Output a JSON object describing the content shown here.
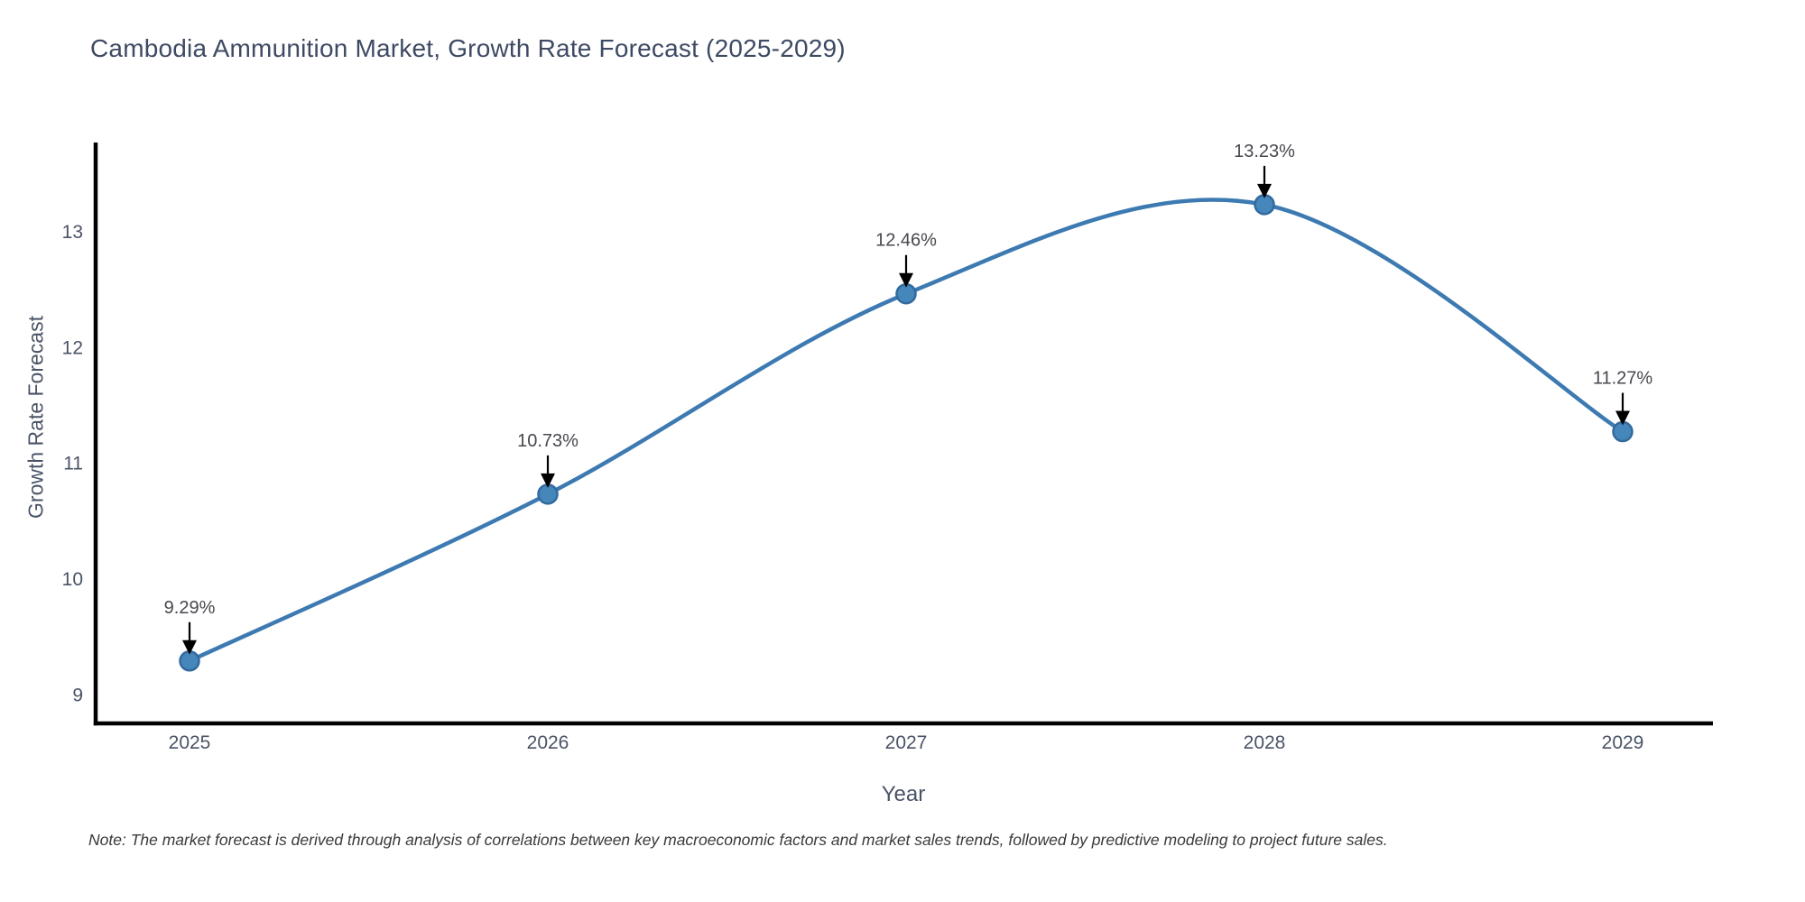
{
  "note": "Note: The market forecast is derived through analysis of correlations between key macroeconomic factors and market sales trends, followed by predictive modeling to project future sales.",
  "chart_data": {
    "type": "line",
    "title": "Cambodia Ammunition Market, Growth Rate Forecast (2025-2029)",
    "xlabel": "Year",
    "ylabel": "Growth Rate Forecast",
    "categories": [
      "2025",
      "2026",
      "2027",
      "2028",
      "2029"
    ],
    "series": [
      {
        "name": "Growth Rate Forecast",
        "values": [
          9.29,
          10.73,
          12.46,
          13.23,
          11.27
        ],
        "point_labels": [
          "9.29%",
          "10.73%",
          "12.46%",
          "13.23%",
          "11.27%"
        ]
      }
    ],
    "yticks": [
      9,
      10,
      11,
      12,
      13
    ],
    "ylim": [
      8.75,
      13.75
    ],
    "grid": false,
    "legend": "none",
    "smooth": true,
    "line_color": "#3d7ab2",
    "marker_fill": "#4687bb",
    "marker_edge": "#336a9e",
    "axis_color": "#000000",
    "annotation_arrow_color": "#000000"
  }
}
